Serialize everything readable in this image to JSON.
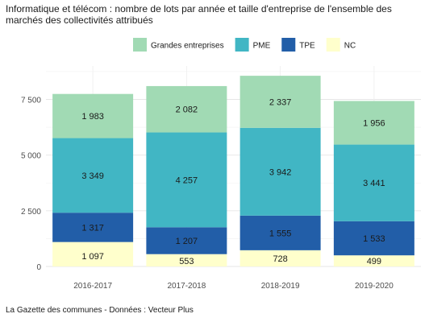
{
  "chart_data": {
    "type": "bar",
    "stacked": true,
    "title": "Informatique et télécom : nombre de lots par année et taille d'entreprise de l'ensemble des marchés des collectivités attribués",
    "xlabel": "",
    "ylabel": "",
    "categories": [
      "2016-2017",
      "2017-2018",
      "2018-2019",
      "2019-2020"
    ],
    "series": [
      {
        "name": "NC",
        "color": "#ffffcc",
        "values": [
          1097,
          553,
          728,
          499
        ],
        "labels": [
          "1 097",
          "553",
          "728",
          "499"
        ]
      },
      {
        "name": "TPE",
        "color": "#225ea8",
        "values": [
          1317,
          1207,
          1555,
          1533
        ],
        "labels": [
          "1 317",
          "1 207",
          "1 555",
          "1 533"
        ]
      },
      {
        "name": "PME",
        "color": "#41b6c4",
        "values": [
          3349,
          4257,
          3942,
          3441
        ],
        "labels": [
          "3 349",
          "4 257",
          "3 942",
          "3 441"
        ]
      },
      {
        "name": "Grandes entreprises",
        "color": "#a1dab4",
        "values": [
          1983,
          2082,
          2337,
          1956
        ],
        "labels": [
          "1 983",
          "2 082",
          "2 337",
          "1 956"
        ]
      }
    ],
    "legend_order": [
      "Grandes entreprises",
      "PME",
      "TPE",
      "NC"
    ],
    "legend_position": "top",
    "ylim": [
      0,
      9000
    ],
    "yticks": [
      0,
      2500,
      5000,
      7500
    ],
    "ytick_labels": [
      "0",
      "2 500",
      "5 000",
      "7 500"
    ],
    "grid": true,
    "source": "La Gazette des communes - Données : Vecteur Plus"
  }
}
